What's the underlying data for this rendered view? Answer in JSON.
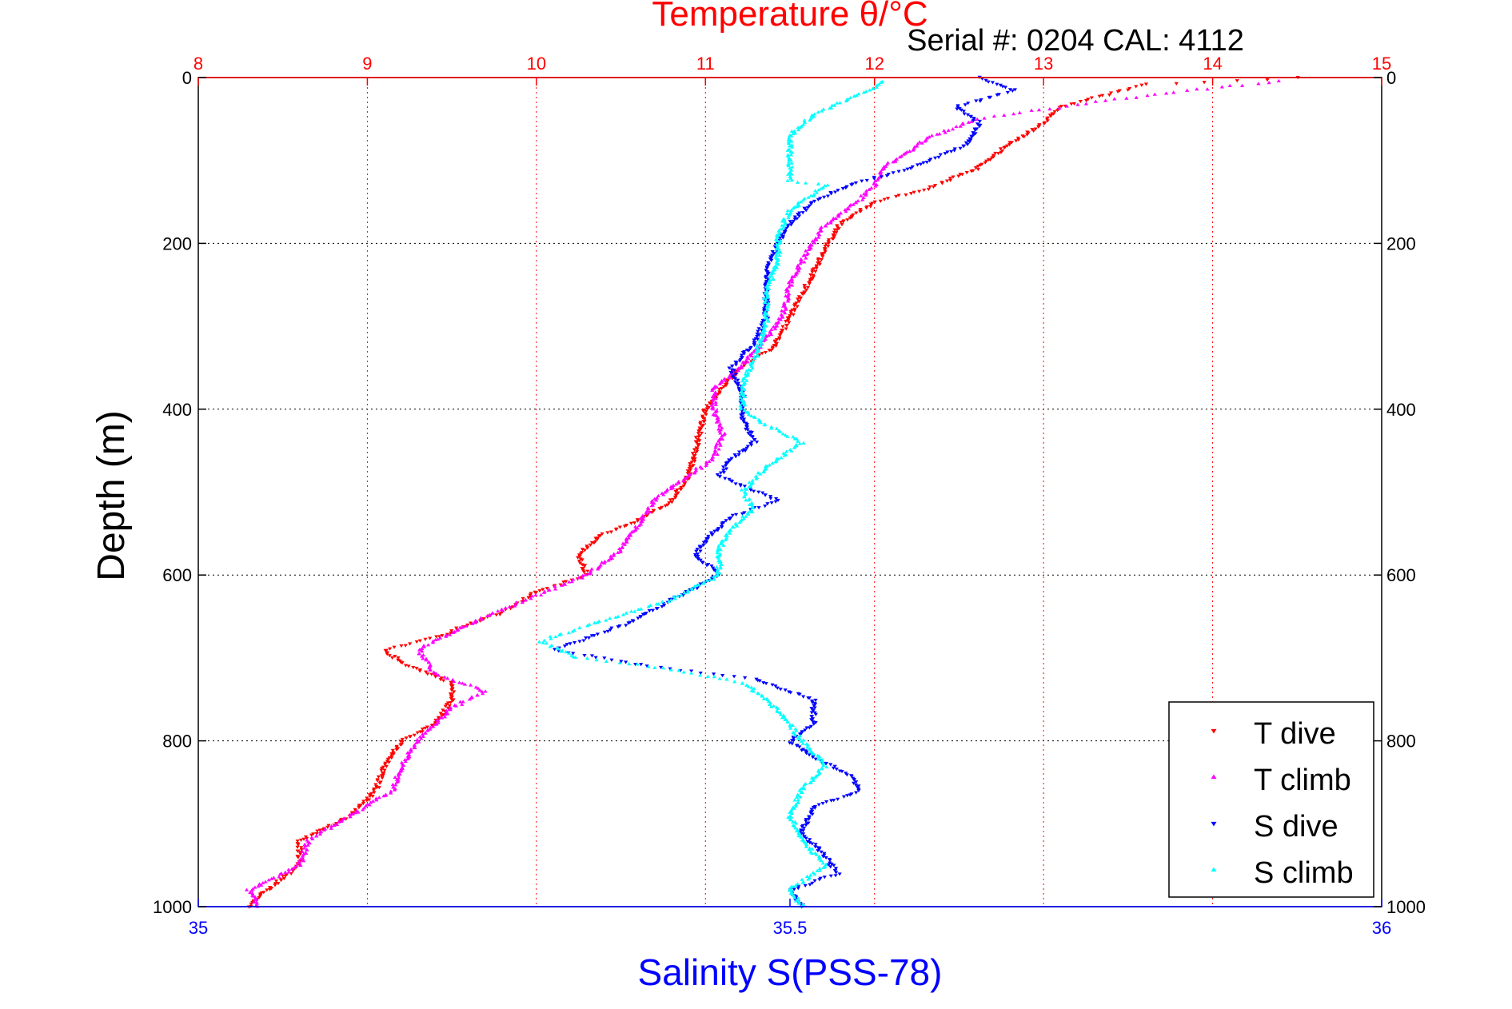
{
  "chart_data": {
    "type": "scatter",
    "title": "Temperature θ/°C",
    "subtitle": "Serial #: 0204  CAL: 4112",
    "ylabel": "Depth (m)",
    "x_top_label": "Temperature θ/°C",
    "x_bottom_label": "Salinity S(PSS-78)",
    "ylim": [
      0,
      1000
    ],
    "y_reversed": true,
    "x_top_lim": [
      8,
      15
    ],
    "x_bottom_lim": [
      35,
      36
    ],
    "y_ticks": [
      "0",
      "200",
      "400",
      "600",
      "800",
      "1000"
    ],
    "x_top_ticks": [
      "8",
      "9",
      "10",
      "11",
      "12",
      "13",
      "14",
      "15"
    ],
    "x_bottom_ticks": [
      "35",
      "35.5",
      "36"
    ],
    "grid": true,
    "legend_position": "bottom-right",
    "colors": {
      "temperature_axis": "#ff0000",
      "salinity_axis": "#0000ff",
      "t_dive": "#ff0000",
      "t_climb": "#ff00ff",
      "s_dive": "#0000ff",
      "s_climb": "#00ffff"
    },
    "series": [
      {
        "name": "T dive",
        "axis": "temperature",
        "marker": "triangle-down",
        "color": "#ff0000",
        "points": [
          [
            14.5,
            0
          ],
          [
            13.6,
            8
          ],
          [
            13.1,
            35
          ],
          [
            13.0,
            55
          ],
          [
            12.8,
            80
          ],
          [
            12.6,
            110
          ],
          [
            12.3,
            135
          ],
          [
            12.0,
            150
          ],
          [
            11.8,
            175
          ],
          [
            11.7,
            210
          ],
          [
            11.6,
            250
          ],
          [
            11.5,
            290
          ],
          [
            11.4,
            325
          ],
          [
            11.2,
            350
          ],
          [
            11.1,
            375
          ],
          [
            11.0,
            400
          ],
          [
            10.95,
            440
          ],
          [
            10.9,
            480
          ],
          [
            10.8,
            510
          ],
          [
            10.6,
            535
          ],
          [
            10.4,
            550
          ],
          [
            10.25,
            575
          ],
          [
            10.3,
            600
          ],
          [
            10.0,
            620
          ],
          [
            9.8,
            645
          ],
          [
            9.6,
            660
          ],
          [
            9.4,
            675
          ],
          [
            9.1,
            690
          ],
          [
            9.2,
            705
          ],
          [
            9.5,
            730
          ],
          [
            9.5,
            750
          ],
          [
            9.4,
            780
          ],
          [
            9.2,
            800
          ],
          [
            9.1,
            830
          ],
          [
            9.05,
            860
          ],
          [
            8.9,
            890
          ],
          [
            8.6,
            920
          ],
          [
            8.6,
            950
          ],
          [
            8.4,
            980
          ],
          [
            8.3,
            1000
          ]
        ]
      },
      {
        "name": "T climb",
        "axis": "temperature",
        "marker": "triangle-up",
        "color": "#ff00ff",
        "points": [
          [
            14.4,
            5
          ],
          [
            13.9,
            15
          ],
          [
            13.3,
            30
          ],
          [
            12.6,
            50
          ],
          [
            12.3,
            75
          ],
          [
            12.05,
            110
          ],
          [
            12.0,
            130
          ],
          [
            11.9,
            150
          ],
          [
            11.7,
            180
          ],
          [
            11.6,
            210
          ],
          [
            11.5,
            250
          ],
          [
            11.45,
            290
          ],
          [
            11.3,
            330
          ],
          [
            11.2,
            350
          ],
          [
            11.05,
            375
          ],
          [
            11.05,
            400
          ],
          [
            11.1,
            430
          ],
          [
            11.05,
            460
          ],
          [
            10.9,
            480
          ],
          [
            10.7,
            510
          ],
          [
            10.6,
            540
          ],
          [
            10.5,
            570
          ],
          [
            10.3,
            600
          ],
          [
            10.0,
            625
          ],
          [
            9.7,
            650
          ],
          [
            9.5,
            670
          ],
          [
            9.3,
            690
          ],
          [
            9.4,
            720
          ],
          [
            9.7,
            740
          ],
          [
            9.5,
            760
          ],
          [
            9.3,
            800
          ],
          [
            9.2,
            830
          ],
          [
            9.15,
            860
          ],
          [
            8.9,
            890
          ],
          [
            8.65,
            920
          ],
          [
            8.6,
            950
          ],
          [
            8.3,
            980
          ],
          [
            8.35,
            1000
          ]
        ]
      },
      {
        "name": "S dive",
        "axis": "salinity",
        "marker": "triangle-down",
        "color": "#0000ff",
        "points": [
          [
            35.66,
            0
          ],
          [
            35.69,
            15
          ],
          [
            35.64,
            35
          ],
          [
            35.66,
            55
          ],
          [
            35.65,
            80
          ],
          [
            35.6,
            110
          ],
          [
            35.55,
            130
          ],
          [
            35.52,
            150
          ],
          [
            35.5,
            175
          ],
          [
            35.49,
            200
          ],
          [
            35.48,
            230
          ],
          [
            35.48,
            260
          ],
          [
            35.48,
            290
          ],
          [
            35.47,
            320
          ],
          [
            35.45,
            350
          ],
          [
            35.46,
            380
          ],
          [
            35.46,
            410
          ],
          [
            35.47,
            440
          ],
          [
            35.45,
            460
          ],
          [
            35.44,
            480
          ],
          [
            35.49,
            510
          ],
          [
            35.45,
            530
          ],
          [
            35.43,
            555
          ],
          [
            35.42,
            575
          ],
          [
            35.44,
            600
          ],
          [
            35.4,
            630
          ],
          [
            35.36,
            660
          ],
          [
            35.3,
            690
          ],
          [
            35.38,
            710
          ],
          [
            35.47,
            725
          ],
          [
            35.52,
            750
          ],
          [
            35.52,
            780
          ],
          [
            35.5,
            800
          ],
          [
            35.52,
            820
          ],
          [
            35.55,
            840
          ],
          [
            35.56,
            860
          ],
          [
            35.52,
            880
          ],
          [
            35.51,
            910
          ],
          [
            35.53,
            940
          ],
          [
            35.54,
            960
          ],
          [
            35.5,
            980
          ],
          [
            35.51,
            1000
          ]
        ]
      },
      {
        "name": "S climb",
        "axis": "salinity",
        "marker": "triangle-up",
        "color": "#00ffff",
        "points": [
          [
            35.58,
            5
          ],
          [
            35.56,
            20
          ],
          [
            35.52,
            45
          ],
          [
            35.5,
            70
          ],
          [
            35.5,
            100
          ],
          [
            35.5,
            125
          ],
          [
            35.53,
            130
          ],
          [
            35.5,
            160
          ],
          [
            35.49,
            190
          ],
          [
            35.49,
            220
          ],
          [
            35.48,
            260
          ],
          [
            35.48,
            300
          ],
          [
            35.47,
            340
          ],
          [
            35.46,
            370
          ],
          [
            35.46,
            400
          ],
          [
            35.48,
            420
          ],
          [
            35.51,
            440
          ],
          [
            35.48,
            470
          ],
          [
            35.46,
            500
          ],
          [
            35.47,
            520
          ],
          [
            35.45,
            545
          ],
          [
            35.44,
            570
          ],
          [
            35.44,
            600
          ],
          [
            35.4,
            630
          ],
          [
            35.33,
            660
          ],
          [
            35.29,
            680
          ],
          [
            35.32,
            700
          ],
          [
            35.38,
            710
          ],
          [
            35.46,
            730
          ],
          [
            35.48,
            750
          ],
          [
            35.5,
            780
          ],
          [
            35.51,
            800
          ],
          [
            35.53,
            830
          ],
          [
            35.51,
            860
          ],
          [
            35.5,
            890
          ],
          [
            35.51,
            920
          ],
          [
            35.53,
            950
          ],
          [
            35.5,
            980
          ],
          [
            35.51,
            1000
          ]
        ]
      }
    ]
  }
}
